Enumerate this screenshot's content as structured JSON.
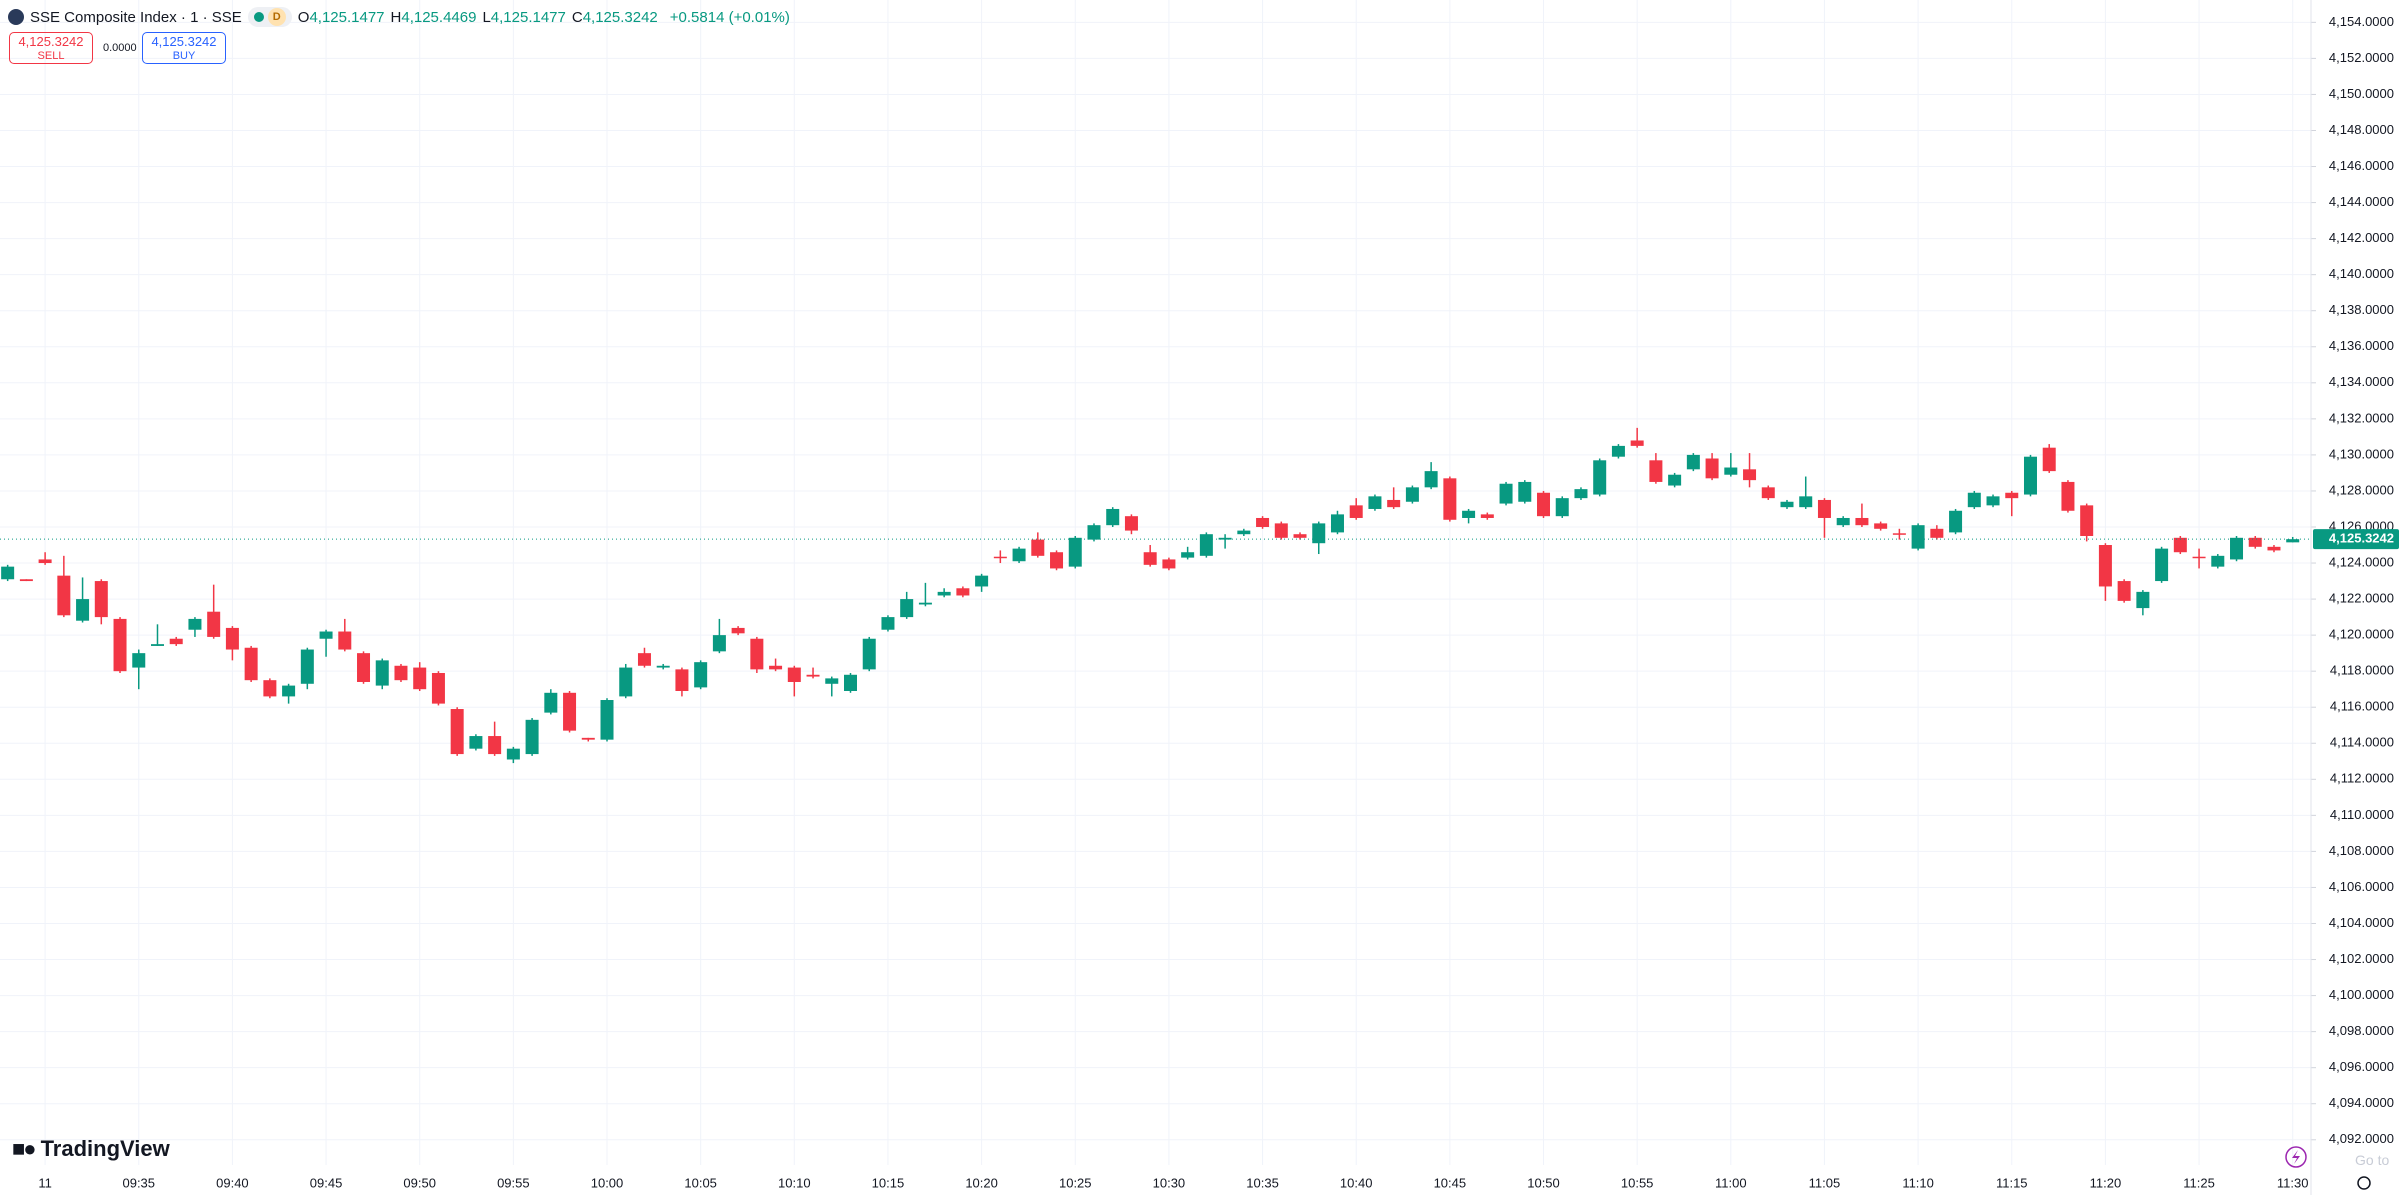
{
  "header": {
    "symbol": "SSE Composite Index · 1 · SSE",
    "badge": "D",
    "legend": [
      {
        "key": "O",
        "value": "4,125.1477"
      },
      {
        "key": "H",
        "value": "4,125.4469"
      },
      {
        "key": "L",
        "value": "4,125.1477"
      },
      {
        "key": "C",
        "value": "4,125.3242"
      }
    ],
    "change": "+0.5814 (+0.01%)"
  },
  "trade": {
    "sell_price": "4,125.3242",
    "sell": "SELL",
    "spread": "0.0000",
    "buy_price": "4,125.3242",
    "buy": "BUY"
  },
  "brand": "TradingView",
  "goto": "Go to",
  "chart_data": {
    "type": "candlestick",
    "title": "SSE Composite Index · 1 · SSE",
    "up_color": "#089981",
    "down_color": "#f23645",
    "grid": true,
    "categories": [
      null,
      null,
      "11",
      null,
      null,
      null,
      null,
      "09:35",
      null,
      null,
      null,
      null,
      "09:40",
      null,
      null,
      null,
      null,
      "09:45",
      null,
      null,
      null,
      null,
      "09:50",
      null,
      null,
      null,
      null,
      "09:55",
      null,
      null,
      null,
      null,
      "10:00",
      null,
      null,
      null,
      null,
      "10:05",
      null,
      null,
      null,
      null,
      "10:10",
      null,
      null,
      null,
      null,
      "10:15",
      null,
      null,
      null,
      null,
      "10:20",
      null,
      null,
      null,
      null,
      "10:25",
      null,
      null,
      null,
      null,
      "10:30",
      null,
      null,
      null,
      null,
      "10:35",
      null,
      null,
      null,
      null,
      "10:40",
      null,
      null,
      null,
      null,
      "10:45",
      null,
      null,
      null,
      null,
      "10:50",
      null,
      null,
      null,
      null,
      "10:55",
      null,
      null,
      null,
      null,
      "11:00",
      null,
      null,
      null,
      null,
      "11:05",
      null,
      null,
      null,
      null,
      "11:10",
      null,
      null,
      null,
      null,
      "11:15",
      null,
      null,
      null,
      null,
      "11:20",
      null,
      null,
      null,
      null,
      "11:25",
      null,
      null,
      null,
      null,
      "11:30"
    ],
    "open": [
      4123.1,
      4123.1,
      4124.2,
      4123.3,
      4120.8,
      4123.0,
      4120.9,
      4118.2,
      4119.4,
      4119.8,
      4120.3,
      4121.3,
      4120.4,
      4119.3,
      4117.5,
      4116.6,
      4117.3,
      4119.8,
      4120.2,
      4119.0,
      4117.2,
      4118.3,
      4118.2,
      4117.9,
      4115.9,
      4113.7,
      4114.4,
      4113.1,
      4113.4,
      4115.7,
      4116.8,
      4114.3,
      4114.2,
      4116.6,
      4119.0,
      4118.2,
      4118.1,
      4117.1,
      4119.1,
      4120.4,
      4119.8,
      4118.3,
      4118.2,
      4117.8,
      4117.3,
      4116.9,
      4118.1,
      4120.3,
      4121.0,
      4121.7,
      4122.2,
      4122.6,
      4122.7,
      4124.35,
      4124.1,
      4125.3,
      4124.6,
      4123.8,
      4125.3,
      4126.1,
      4126.6,
      4124.6,
      4124.2,
      4124.3,
      4124.4,
      4125.3,
      4125.6,
      4126.5,
      4126.2,
      4125.6,
      4125.1,
      4125.7,
      4127.2,
      4127.0,
      4127.5,
      4127.4,
      4128.2,
      4128.7,
      4126.5,
      4126.7,
      4127.3,
      4127.4,
      4127.9,
      4126.6,
      4127.6,
      4127.8,
      4129.9,
      4130.8,
      4129.7,
      4128.3,
      4129.2,
      4129.8,
      4128.9,
      4129.2,
      4128.2,
      4127.1,
      4127.1,
      4127.5,
      4126.1,
      4126.5,
      4126.2,
      4125.65,
      4124.8,
      4125.9,
      4125.7,
      4127.1,
      4127.2,
      4127.9,
      4127.8,
      4130.4,
      4128.5,
      4127.2,
      4125.0,
      4123.0,
      4121.5,
      4123.0,
      4125.4,
      4124.35,
      4123.8,
      4124.2,
      4125.4,
      4124.9,
      4125.1477
    ],
    "high": [
      4123.9,
      4123.1,
      4124.6,
      4124.4,
      4123.2,
      4123.1,
      4121.0,
      4119.2,
      4120.6,
      4119.9,
      4121.0,
      4122.8,
      4120.5,
      4119.4,
      4117.6,
      4117.3,
      4119.3,
      4120.3,
      4120.9,
      4119.1,
      4118.7,
      4118.4,
      4118.5,
      4118.0,
      4116.0,
      4114.5,
      4115.2,
      4113.8,
      4115.4,
      4117.0,
      4116.9,
      4114.3,
      4116.5,
      4118.4,
      4119.3,
      4118.4,
      4118.2,
      4118.6,
      4120.9,
      4120.5,
      4119.9,
      4118.7,
      4118.3,
      4118.2,
      4117.7,
      4117.9,
      4119.9,
      4121.1,
      4122.4,
      4122.9,
      4122.6,
      4122.7,
      4123.4,
      4124.7,
      4124.9,
      4125.7,
      4124.7,
      4125.5,
      4126.2,
      4127.1,
      4126.7,
      4125.0,
      4124.3,
      4124.9,
      4125.7,
      4125.6,
      4125.9,
      4126.6,
      4126.3,
      4125.7,
      4126.3,
      4126.9,
      4127.6,
      4127.8,
      4128.2,
      4128.3,
      4129.6,
      4128.8,
      4127.0,
      4126.8,
      4128.5,
      4128.6,
      4128.0,
      4127.7,
      4128.2,
      4129.8,
      4130.6,
      4131.5,
      4130.1,
      4129.0,
      4130.1,
      4130.1,
      4130.1,
      4130.1,
      4128.3,
      4127.5,
      4128.8,
      4127.6,
      4126.6,
      4127.3,
      4126.3,
      4125.9,
      4126.2,
      4126.1,
      4127.0,
      4128.0,
      4127.8,
      4128.0,
      4130.0,
      4130.6,
      4128.6,
      4127.3,
      4125.1,
      4123.1,
      4122.5,
      4124.9,
      4125.5,
      4124.8,
      4124.5,
      4125.5,
      4125.5,
      4125.0,
      4125.4469
    ],
    "low": [
      4123.0,
      4123.0,
      4123.9,
      4121.0,
      4120.7,
      4120.6,
      4117.9,
      4117.0,
      4119.4,
      4119.4,
      4119.9,
      4119.8,
      4118.6,
      4117.4,
      4116.5,
      4116.2,
      4117.0,
      4118.8,
      4119.1,
      4117.3,
      4117.0,
      4117.4,
      4116.9,
      4116.1,
      4113.3,
      4113.6,
      4113.3,
      4112.9,
      4113.3,
      4115.6,
      4114.6,
      4114.1,
      4114.1,
      4116.5,
      4118.2,
      4118.1,
      4116.6,
      4117.0,
      4119.0,
      4120.0,
      4117.9,
      4118.0,
      4116.6,
      4117.6,
      4116.6,
      4116.8,
      4118.0,
      4120.2,
      4120.9,
      4121.6,
      4122.1,
      4122.1,
      4122.4,
      4124.0,
      4124.0,
      4124.3,
      4123.6,
      4123.7,
      4125.2,
      4126.0,
      4125.6,
      4123.8,
      4123.6,
      4124.2,
      4124.3,
      4124.8,
      4125.5,
      4125.9,
      4125.3,
      4125.3,
      4124.5,
      4125.6,
      4126.4,
      4126.9,
      4127.0,
      4127.3,
      4128.1,
      4126.3,
      4126.2,
      4126.4,
      4127.2,
      4127.3,
      4126.5,
      4126.5,
      4127.5,
      4127.7,
      4129.8,
      4130.4,
      4128.4,
      4128.2,
      4129.1,
      4128.6,
      4128.8,
      4128.2,
      4127.5,
      4127.0,
      4127.0,
      4125.4,
      4126.0,
      4126.0,
      4125.8,
      4125.3,
      4124.7,
      4125.3,
      4125.6,
      4127.0,
      4127.1,
      4126.6,
      4127.7,
      4129.0,
      4126.8,
      4125.2,
      4121.9,
      4121.8,
      4121.1,
      4122.9,
      4124.5,
      4123.7,
      4123.7,
      4124.1,
      4124.8,
      4124.6,
      4125.1477
    ],
    "close": [
      4123.8,
      4123.0,
      4124.0,
      4121.1,
      4122.0,
      4121.0,
      4118.0,
      4119.0,
      4119.5,
      4119.5,
      4120.9,
      4119.9,
      4119.2,
      4117.5,
      4116.6,
      4117.2,
      4119.2,
      4120.2,
      4119.2,
      4117.4,
      4118.6,
      4117.5,
      4117.0,
      4116.2,
      4113.4,
      4114.4,
      4113.4,
      4113.7,
      4115.3,
      4116.8,
      4114.7,
      4114.2,
      4116.4,
      4118.2,
      4118.3,
      4118.3,
      4116.9,
      4118.5,
      4120.0,
      4120.1,
      4118.1,
      4118.1,
      4117.4,
      4117.7,
      4117.6,
      4117.8,
      4119.8,
      4121.0,
      4122.0,
      4121.8,
      4122.4,
      4122.2,
      4123.3,
      4124.3,
      4124.8,
      4124.4,
      4123.7,
      4125.4,
      4126.1,
      4127.0,
      4125.8,
      4123.9,
      4123.7,
      4124.6,
      4125.6,
      4125.4,
      4125.8,
      4126.0,
      4125.4,
      4125.4,
      4126.2,
      4126.7,
      4126.5,
      4127.7,
      4127.1,
      4128.2,
      4129.1,
      4126.4,
      4126.9,
      4126.5,
      4128.4,
      4128.5,
      4126.6,
      4127.6,
      4128.1,
      4129.7,
      4130.5,
      4130.5,
      4128.5,
      4128.9,
      4130.0,
      4128.7,
      4129.3,
      4128.6,
      4127.6,
      4127.4,
      4127.7,
      4126.5,
      4126.5,
      4126.1,
      4125.9,
      4125.6,
      4126.1,
      4125.4,
      4126.9,
      4127.9,
      4127.7,
      4127.6,
      4129.9,
      4129.1,
      4126.9,
      4125.5,
      4122.7,
      4121.9,
      4122.4,
      4124.8,
      4124.6,
      4124.3,
      4124.4,
      4125.4,
      4124.9,
      4124.7,
      4125.3242
    ],
    "last_price": {
      "value": 4125.3242,
      "label": "4,125.3242"
    },
    "ylim": [
      4090.6,
      4155.24
    ],
    "yticks": [
      {
        "value": 4092,
        "label": "4,092.0000"
      },
      {
        "value": 4094,
        "label": "4,094.0000"
      },
      {
        "value": 4096,
        "label": "4,096.0000"
      },
      {
        "value": 4098,
        "label": "4,098.0000"
      },
      {
        "value": 4100,
        "label": "4,100.0000"
      },
      {
        "value": 4102,
        "label": "4,102.0000"
      },
      {
        "value": 4104,
        "label": "4,104.0000"
      },
      {
        "value": 4106,
        "label": "4,106.0000"
      },
      {
        "value": 4108,
        "label": "4,108.0000"
      },
      {
        "value": 4110,
        "label": "4,110.0000"
      },
      {
        "value": 4112,
        "label": "4,112.0000"
      },
      {
        "value": 4114,
        "label": "4,114.0000"
      },
      {
        "value": 4116,
        "label": "4,116.0000"
      },
      {
        "value": 4118,
        "label": "4,118.0000"
      },
      {
        "value": 4120,
        "label": "4,120.0000"
      },
      {
        "value": 4122,
        "label": "4,122.0000"
      },
      {
        "value": 4124,
        "label": "4,124.0000"
      },
      {
        "value": 4126,
        "label": "4,126.0000"
      },
      {
        "value": 4128,
        "label": "4,128.0000"
      },
      {
        "value": 4130,
        "label": "4,130.0000"
      },
      {
        "value": 4132,
        "label": "4,132.0000"
      },
      {
        "value": 4134,
        "label": "4,134.0000"
      },
      {
        "value": 4136,
        "label": "4,136.0000"
      },
      {
        "value": 4138,
        "label": "4,138.0000"
      },
      {
        "value": 4140,
        "label": "4,140.0000"
      },
      {
        "value": 4142,
        "label": "4,142.0000"
      },
      {
        "value": 4144,
        "label": "4,144.0000"
      },
      {
        "value": 4146,
        "label": "4,146.0000"
      },
      {
        "value": 4148,
        "label": "4,148.0000"
      },
      {
        "value": 4150,
        "label": "4,150.0000"
      },
      {
        "value": 4152,
        "label": "4,152.0000"
      },
      {
        "value": 4154,
        "label": "4,154.0000"
      }
    ]
  }
}
